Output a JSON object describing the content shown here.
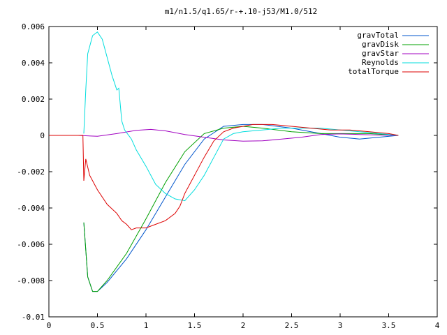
{
  "chart_data": {
    "type": "line",
    "title": "m1/n1.5/q1.65/r-+.10-j53/M1.0/512",
    "xlabel": "",
    "ylabel": "",
    "xlim": [
      0,
      4
    ],
    "ylim": [
      -0.01,
      0.006
    ],
    "xticks": [
      "0",
      "0.5",
      "1",
      "1.5",
      "2",
      "2.5",
      "3",
      "3.5",
      "4"
    ],
    "yticks": [
      "0.006",
      "0.004",
      "0.002",
      "0",
      "-0.002",
      "-0.004",
      "-0.006",
      "-0.008",
      "-0.01"
    ],
    "grid": false,
    "legend": "top-right",
    "series": [
      {
        "name": "gravTotal",
        "color": "#0055cc",
        "points": [
          [
            0.36,
            -0.0048
          ],
          [
            0.4,
            -0.0078
          ],
          [
            0.45,
            -0.0086
          ],
          [
            0.5,
            -0.0086
          ],
          [
            0.6,
            -0.0081
          ],
          [
            0.8,
            -0.0068
          ],
          [
            1.0,
            -0.0052
          ],
          [
            1.2,
            -0.0034
          ],
          [
            1.4,
            -0.0016
          ],
          [
            1.6,
            -0.0002
          ],
          [
            1.8,
            0.0005
          ],
          [
            2.0,
            0.0006
          ],
          [
            2.2,
            0.0006
          ],
          [
            2.5,
            0.0004
          ],
          [
            2.8,
            0.0001
          ],
          [
            3.0,
            -0.0001
          ],
          [
            3.2,
            -0.0002
          ],
          [
            3.4,
            -0.0001
          ],
          [
            3.6,
            0.0
          ]
        ]
      },
      {
        "name": "gravDisk",
        "color": "#00a000",
        "points": [
          [
            0.36,
            -0.0048
          ],
          [
            0.4,
            -0.0078
          ],
          [
            0.45,
            -0.0086
          ],
          [
            0.5,
            -0.0086
          ],
          [
            0.6,
            -0.008
          ],
          [
            0.8,
            -0.0065
          ],
          [
            1.0,
            -0.0046
          ],
          [
            1.2,
            -0.0026
          ],
          [
            1.4,
            -0.0009
          ],
          [
            1.6,
            0.0001
          ],
          [
            1.8,
            0.0004
          ],
          [
            2.0,
            0.0005
          ],
          [
            2.2,
            0.0004
          ],
          [
            2.5,
            0.0002
          ],
          [
            2.8,
            0.0001
          ],
          [
            3.0,
            0.0001
          ],
          [
            3.3,
            0.0001
          ],
          [
            3.6,
            0.0
          ]
        ]
      },
      {
        "name": "gravStar",
        "color": "#a000c0",
        "points": [
          [
            0.0,
            0.0
          ],
          [
            0.3,
            0.0
          ],
          [
            0.5,
            -5e-05
          ],
          [
            0.7,
            0.0001
          ],
          [
            0.9,
            0.00028
          ],
          [
            1.05,
            0.00033
          ],
          [
            1.2,
            0.00025
          ],
          [
            1.4,
            5e-05
          ],
          [
            1.6,
            -0.0001
          ],
          [
            1.8,
            -0.00025
          ],
          [
            2.0,
            -0.00032
          ],
          [
            2.2,
            -0.0003
          ],
          [
            2.4,
            -0.0002
          ],
          [
            2.6,
            -0.0001
          ],
          [
            2.8,
            5e-05
          ],
          [
            3.0,
            8e-05
          ],
          [
            3.2,
            5e-05
          ],
          [
            3.4,
            2e-05
          ],
          [
            3.6,
            0.0
          ]
        ]
      },
      {
        "name": "Reynolds",
        "color": "#00dddd",
        "points": [
          [
            0.36,
            0.0001
          ],
          [
            0.38,
            0.0025
          ],
          [
            0.4,
            0.0045
          ],
          [
            0.45,
            0.0055
          ],
          [
            0.5,
            0.0057
          ],
          [
            0.55,
            0.0053
          ],
          [
            0.6,
            0.0043
          ],
          [
            0.65,
            0.0033
          ],
          [
            0.7,
            0.0025
          ],
          [
            0.72,
            0.0026
          ],
          [
            0.75,
            0.0008
          ],
          [
            0.78,
            0.0003
          ],
          [
            0.85,
            -0.0002
          ],
          [
            0.9,
            -0.0008
          ],
          [
            1.0,
            -0.0017
          ],
          [
            1.1,
            -0.0027
          ],
          [
            1.2,
            -0.0032
          ],
          [
            1.3,
            -0.0035
          ],
          [
            1.4,
            -0.0036
          ],
          [
            1.5,
            -0.003
          ],
          [
            1.6,
            -0.0022
          ],
          [
            1.7,
            -0.0012
          ],
          [
            1.8,
            -0.0002
          ],
          [
            1.9,
            0.0001
          ],
          [
            2.0,
            0.0002
          ],
          [
            2.2,
            0.0003
          ],
          [
            2.4,
            0.0004
          ],
          [
            2.6,
            0.0004
          ],
          [
            2.8,
            0.0004
          ],
          [
            3.0,
            0.0003
          ],
          [
            3.2,
            0.0002
          ],
          [
            3.4,
            0.0001
          ],
          [
            3.6,
            0.0
          ]
        ]
      },
      {
        "name": "totalTorque",
        "color": "#dd0000",
        "points": [
          [
            0.0,
            0.0
          ],
          [
            0.35,
            0.0
          ],
          [
            0.36,
            -0.0025
          ],
          [
            0.38,
            -0.0013
          ],
          [
            0.42,
            -0.0022
          ],
          [
            0.5,
            -0.003
          ],
          [
            0.6,
            -0.0038
          ],
          [
            0.7,
            -0.0043
          ],
          [
            0.75,
            -0.0047
          ],
          [
            0.8,
            -0.0049
          ],
          [
            0.85,
            -0.0052
          ],
          [
            0.9,
            -0.0051
          ],
          [
            1.0,
            -0.0051
          ],
          [
            1.1,
            -0.0049
          ],
          [
            1.2,
            -0.0047
          ],
          [
            1.3,
            -0.0043
          ],
          [
            1.35,
            -0.0039
          ],
          [
            1.4,
            -0.0032
          ],
          [
            1.5,
            -0.0022
          ],
          [
            1.6,
            -0.0012
          ],
          [
            1.7,
            -0.0003
          ],
          [
            1.8,
            0.0002
          ],
          [
            1.9,
            0.0004
          ],
          [
            2.0,
            0.0005
          ],
          [
            2.1,
            0.0006
          ],
          [
            2.3,
            0.0006
          ],
          [
            2.5,
            0.0005
          ],
          [
            2.7,
            0.0004
          ],
          [
            2.9,
            0.0003
          ],
          [
            3.1,
            0.0003
          ],
          [
            3.3,
            0.0002
          ],
          [
            3.5,
            0.0001
          ],
          [
            3.6,
            0.0
          ]
        ]
      }
    ]
  }
}
